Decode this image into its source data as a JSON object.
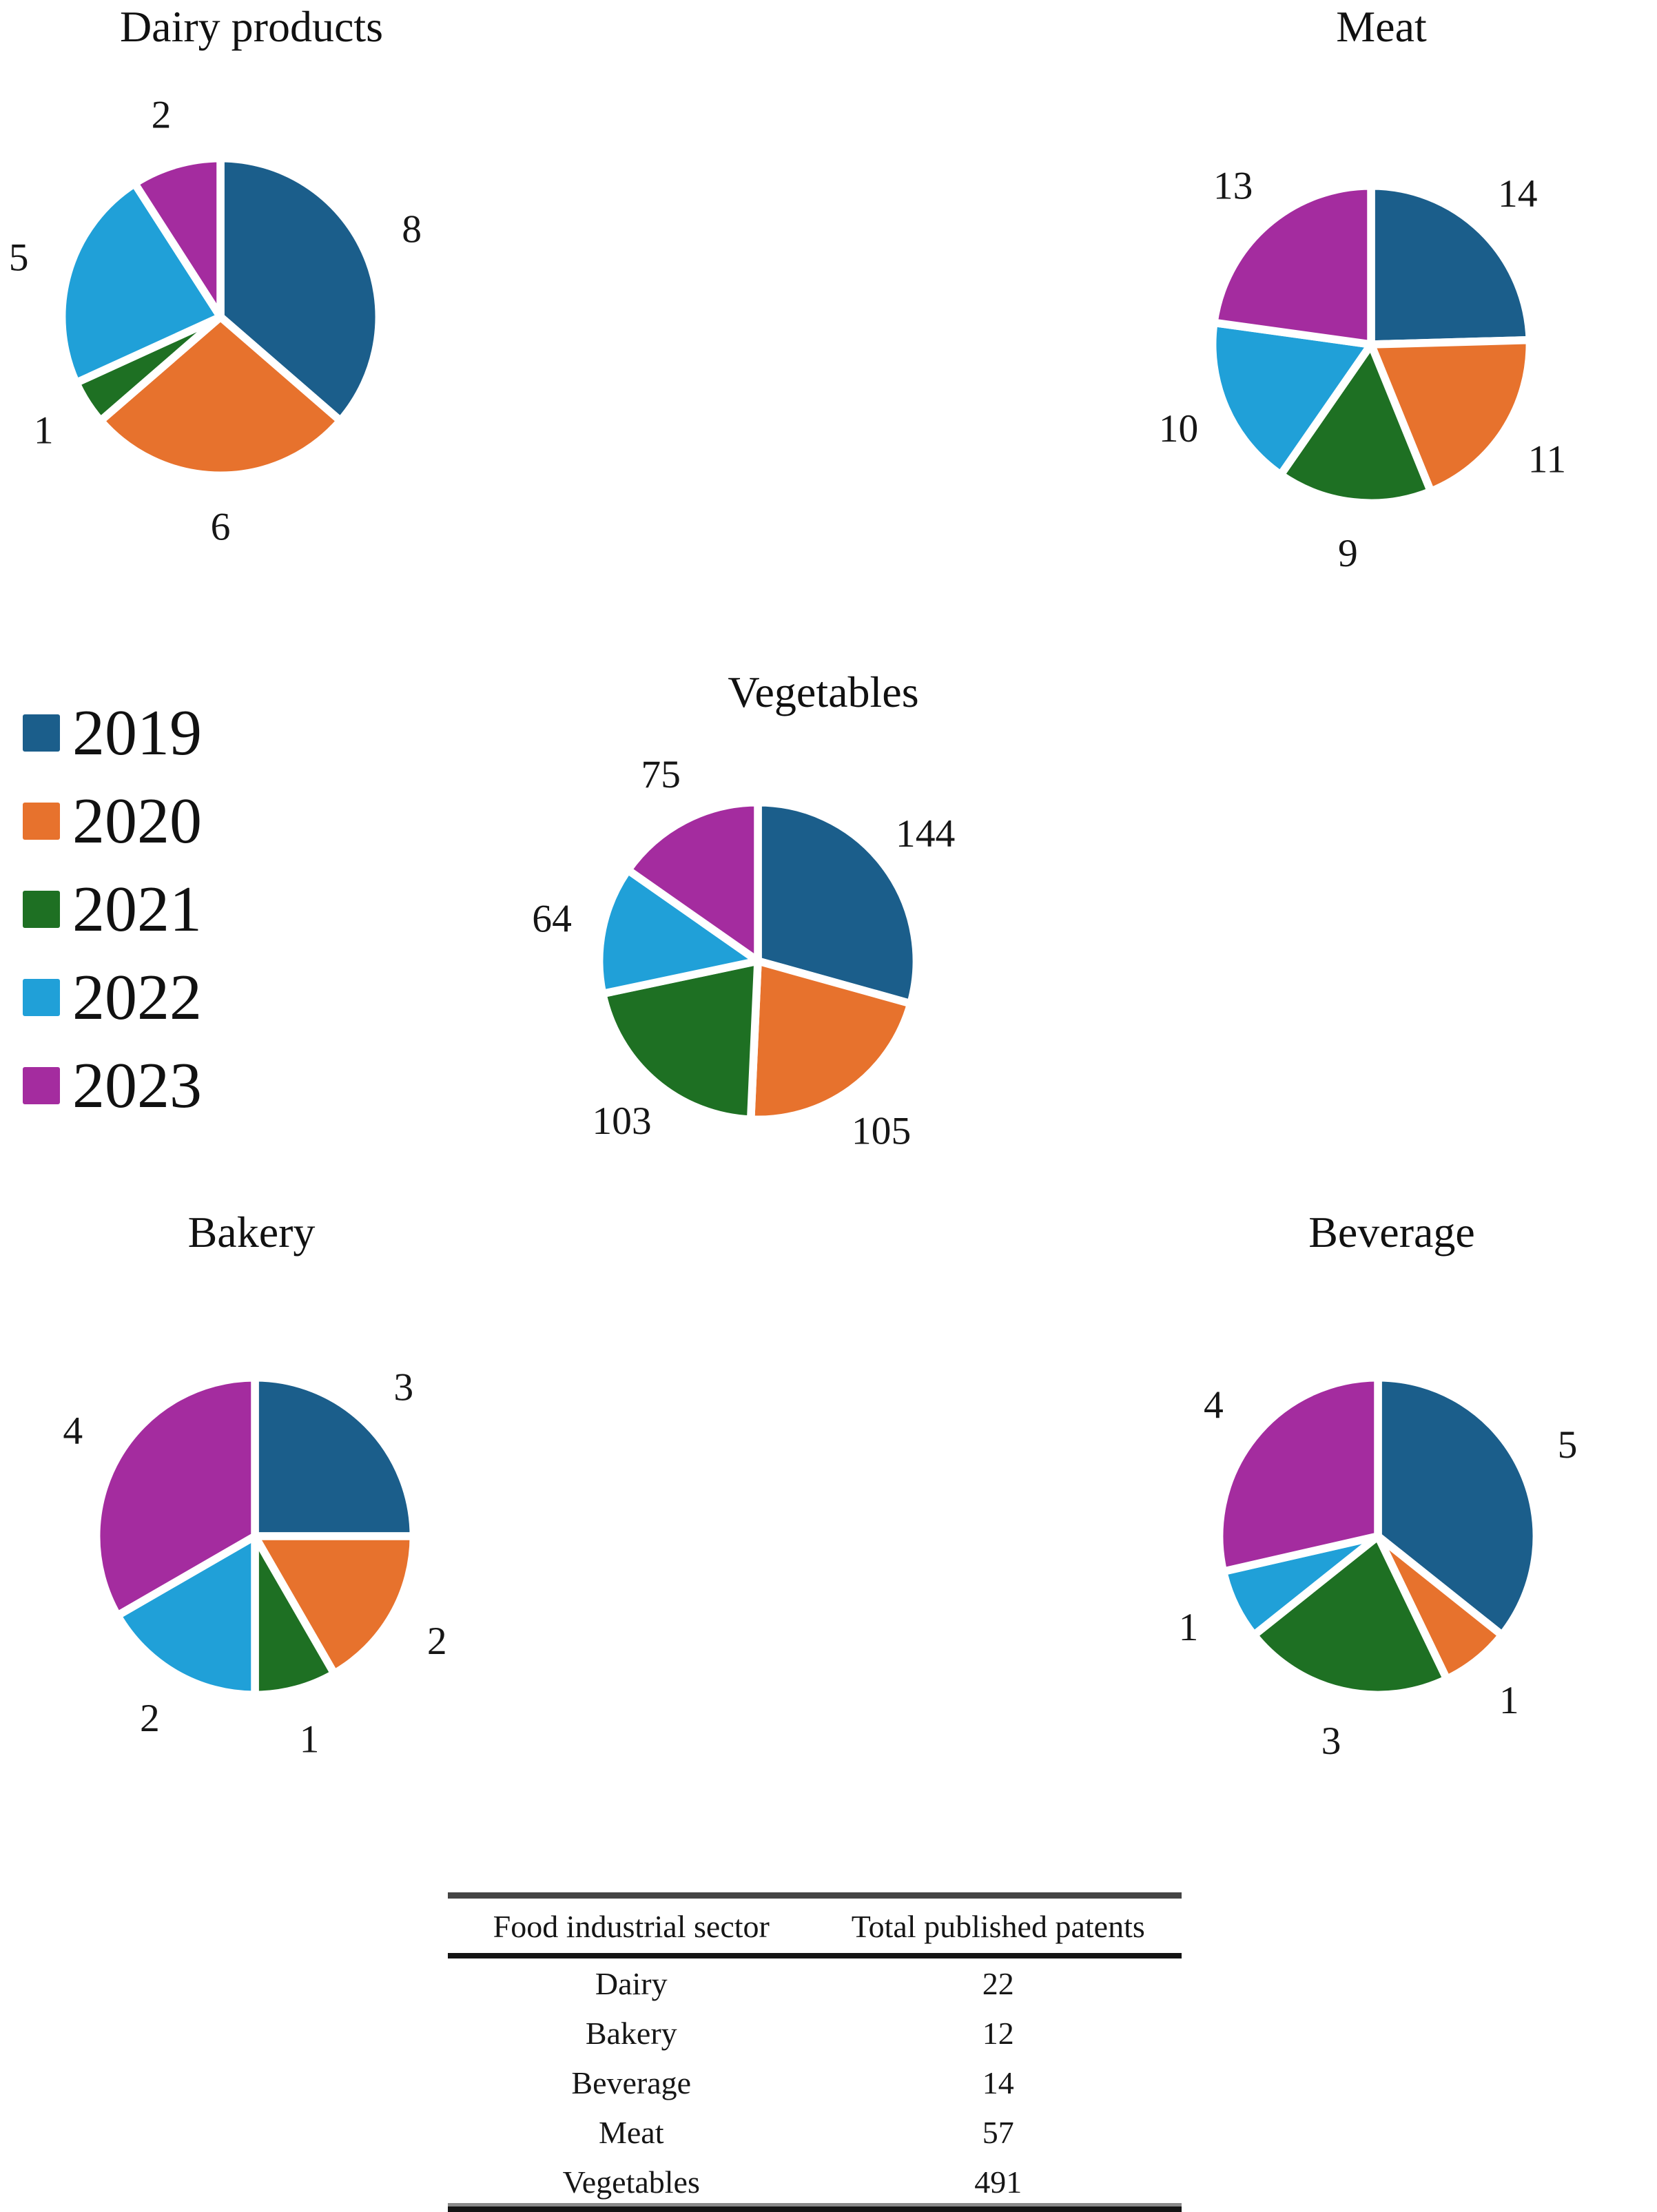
{
  "palette": [
    "#1B5E8B",
    "#E7722D",
    "#1E7023",
    "#20A0D8",
    "#A42C9F"
  ],
  "legend": {
    "position": "left-middle",
    "items": [
      {
        "label": "2019",
        "color": "#1B5E8B"
      },
      {
        "label": "2020",
        "color": "#E7722D"
      },
      {
        "label": "2021",
        "color": "#1E7023"
      },
      {
        "label": "2022",
        "color": "#20A0D8"
      },
      {
        "label": "2023",
        "color": "#A42C9F"
      }
    ]
  },
  "chart_data": [
    {
      "type": "pie",
      "title": "Dairy products",
      "categories": [
        "2019",
        "2020",
        "2021",
        "2022",
        "2023"
      ],
      "values": [
        8,
        6,
        1,
        5,
        2
      ],
      "total": 22,
      "colors": [
        "#1B5E8B",
        "#E7722D",
        "#1E7023",
        "#20A0D8",
        "#A42C9F"
      ],
      "start": "top",
      "direction": "clockwise",
      "labels_outside": true
    },
    {
      "type": "pie",
      "title": "Meat",
      "categories": [
        "2019",
        "2020",
        "2021",
        "2022",
        "2023"
      ],
      "values": [
        14,
        11,
        9,
        10,
        13
      ],
      "total": 57,
      "colors": [
        "#1B5E8B",
        "#E7722D",
        "#1E7023",
        "#20A0D8",
        "#A42C9F"
      ],
      "start": "top",
      "direction": "clockwise",
      "labels_outside": true
    },
    {
      "type": "pie",
      "title": "Vegetables",
      "categories": [
        "2019",
        "2020",
        "2021",
        "2022",
        "2023"
      ],
      "values": [
        144,
        105,
        103,
        64,
        75
      ],
      "total": 491,
      "colors": [
        "#1B5E8B",
        "#E7722D",
        "#1E7023",
        "#20A0D8",
        "#A42C9F"
      ],
      "start": "top",
      "direction": "clockwise",
      "labels_outside": true
    },
    {
      "type": "pie",
      "title": "Bakery",
      "categories": [
        "2019",
        "2020",
        "2021",
        "2022",
        "2023"
      ],
      "values": [
        3,
        2,
        1,
        2,
        4
      ],
      "total": 12,
      "colors": [
        "#1B5E8B",
        "#E7722D",
        "#1E7023",
        "#20A0D8",
        "#A42C9F"
      ],
      "start": "top",
      "direction": "clockwise",
      "labels_outside": true
    },
    {
      "type": "pie",
      "title": "Beverage",
      "categories": [
        "2019",
        "2020",
        "2021",
        "2022",
        "2023"
      ],
      "values": [
        5,
        1,
        3,
        1,
        4
      ],
      "total": 14,
      "colors": [
        "#1B5E8B",
        "#E7722D",
        "#1E7023",
        "#20A0D8",
        "#A42C9F"
      ],
      "start": "top",
      "direction": "clockwise",
      "labels_outside": true
    }
  ],
  "table": {
    "headers": [
      "Food industrial sector",
      "Total published patents"
    ],
    "rows": [
      [
        "Dairy",
        "22"
      ],
      [
        "Bakery",
        "12"
      ],
      [
        "Beverage",
        "14"
      ],
      [
        "Meat",
        "57"
      ],
      [
        "Vegetables",
        "491"
      ]
    ]
  }
}
